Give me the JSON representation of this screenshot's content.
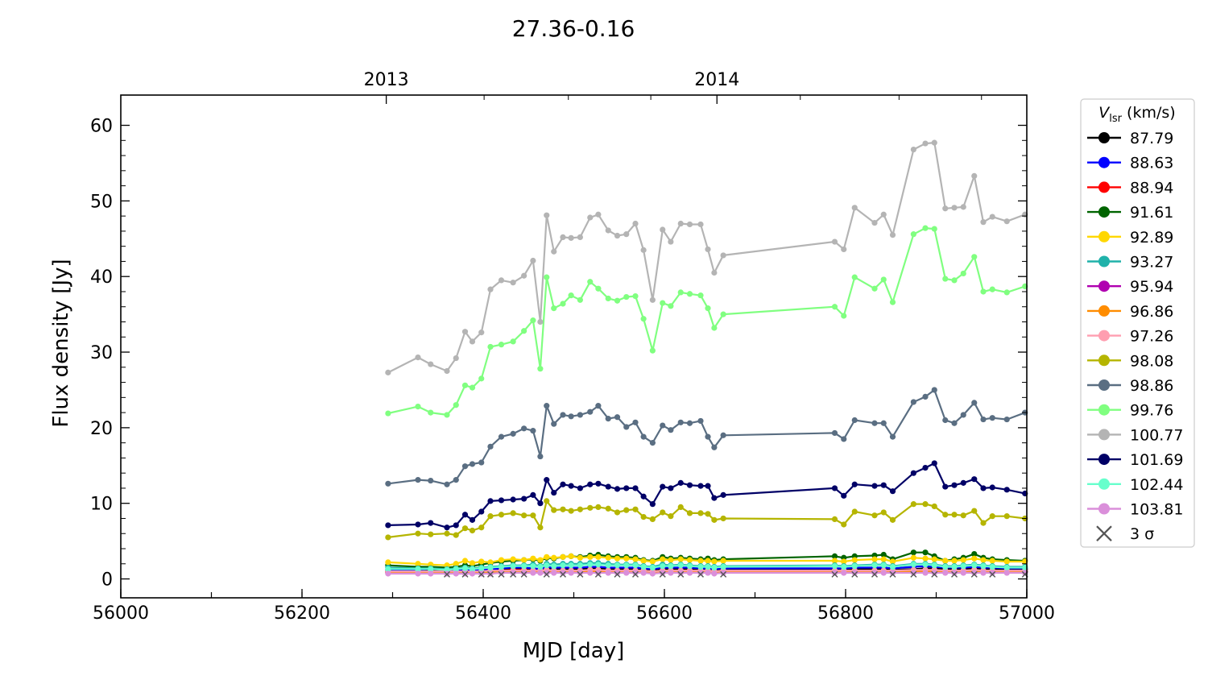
{
  "chart_data": {
    "type": "line",
    "title": "27.36-0.16",
    "xlabel": "MJD [day]",
    "ylabel": "Flux density [Jy]",
    "xlim": [
      56000,
      57000
    ],
    "ylim": [
      -2.5,
      64
    ],
    "x_ticks": [
      56000,
      56200,
      56400,
      56600,
      56800,
      57000
    ],
    "y_ticks": [
      0,
      10,
      20,
      30,
      40,
      50,
      60
    ],
    "top_axis": {
      "ticks": [
        {
          "label": "2013",
          "x": 56293
        },
        {
          "label": "2014",
          "x": 56658
        }
      ]
    },
    "grid": false,
    "legend": {
      "placement": "outside-right",
      "title_main": "V",
      "title_sub": "lsr",
      "title_units": " (km/s)",
      "three_sigma_label": "3 σ"
    },
    "x": [
      56295,
      56328,
      56342,
      56360,
      56370,
      56380,
      56388,
      56398,
      56408,
      56420,
      56433,
      56445,
      56455,
      56463,
      56470,
      56478,
      56488,
      56497,
      56507,
      56518,
      56527,
      56538,
      56548,
      56558,
      56568,
      56577,
      56587,
      56598,
      56607,
      56618,
      56628,
      56640,
      56648,
      56655,
      56665,
      56788,
      56798,
      56810,
      56832,
      56842,
      56852,
      56875,
      56888,
      56898,
      56910,
      56920,
      56930,
      56942,
      56952,
      56962,
      56978,
      56998
    ],
    "series": [
      {
        "name": "87.79",
        "color": "#000000",
        "values": [
          1.0,
          1.0,
          1.1,
          1.0,
          0.9,
          1.0,
          1.0,
          1.0,
          1.1,
          1.2,
          1.3,
          1.3,
          1.2,
          1.1,
          1.4,
          1.3,
          1.3,
          1.3,
          1.3,
          1.4,
          1.4,
          1.3,
          1.3,
          1.3,
          1.3,
          1.2,
          1.1,
          1.3,
          1.3,
          1.3,
          1.3,
          1.2,
          1.2,
          1.1,
          1.2,
          1.2,
          1.2,
          1.3,
          1.3,
          1.3,
          1.2,
          1.3,
          1.4,
          1.4,
          1.3,
          1.3,
          1.3,
          1.4,
          1.3,
          1.3,
          1.2,
          1.2
        ]
      },
      {
        "name": "88.63",
        "color": "#0000ff",
        "values": [
          1.2,
          1.2,
          1.3,
          1.2,
          1.1,
          1.2,
          1.2,
          1.2,
          1.3,
          1.4,
          1.5,
          1.5,
          1.4,
          1.3,
          1.6,
          1.5,
          1.5,
          1.5,
          1.5,
          1.6,
          1.6,
          1.5,
          1.5,
          1.5,
          1.5,
          1.4,
          1.3,
          1.5,
          1.5,
          1.5,
          1.5,
          1.4,
          1.4,
          1.3,
          1.4,
          1.4,
          1.4,
          1.5,
          1.5,
          1.5,
          1.4,
          1.6,
          1.7,
          1.6,
          1.5,
          1.5,
          1.5,
          1.6,
          1.5,
          1.5,
          1.4,
          1.4
        ]
      },
      {
        "name": "88.94",
        "color": "#ff0000",
        "values": [
          0.9,
          0.9,
          1.0,
          0.9,
          0.8,
          0.9,
          0.9,
          0.9,
          1.0,
          1.1,
          1.2,
          1.2,
          1.1,
          1.0,
          1.2,
          1.1,
          1.1,
          1.1,
          1.1,
          1.2,
          1.2,
          1.1,
          1.1,
          1.1,
          1.1,
          1.0,
          1.0,
          1.1,
          1.1,
          1.1,
          1.1,
          1.0,
          1.0,
          1.0,
          1.0,
          1.0,
          1.0,
          1.1,
          1.1,
          1.1,
          1.0,
          1.1,
          1.2,
          1.2,
          1.1,
          1.1,
          1.1,
          1.2,
          1.1,
          1.1,
          1.0,
          1.0
        ]
      },
      {
        "name": "91.61",
        "color": "#006400",
        "values": [
          1.8,
          1.6,
          1.6,
          1.5,
          1.6,
          1.8,
          1.7,
          1.9,
          2.1,
          2.3,
          2.4,
          2.5,
          2.6,
          2.4,
          2.8,
          2.7,
          2.9,
          3.0,
          2.9,
          3.1,
          3.2,
          3.0,
          2.9,
          2.9,
          2.8,
          2.5,
          2.4,
          2.9,
          2.7,
          2.8,
          2.7,
          2.6,
          2.7,
          2.5,
          2.6,
          3.0,
          2.8,
          3.0,
          3.1,
          3.2,
          2.6,
          3.5,
          3.5,
          3.0,
          2.4,
          2.6,
          2.8,
          3.3,
          2.8,
          2.6,
          2.5,
          2.4
        ]
      },
      {
        "name": "92.89",
        "color": "#ffd700",
        "values": [
          2.2,
          2.0,
          1.9,
          1.8,
          2.0,
          2.4,
          2.1,
          2.3,
          2.2,
          2.5,
          2.6,
          2.5,
          2.7,
          2.5,
          2.9,
          2.8,
          2.9,
          3.0,
          2.8,
          2.9,
          2.9,
          2.8,
          2.7,
          2.7,
          2.6,
          2.4,
          2.3,
          2.6,
          2.5,
          2.6,
          2.5,
          2.4,
          2.4,
          2.3,
          2.4,
          2.4,
          2.3,
          2.5,
          2.6,
          2.6,
          2.3,
          2.8,
          2.7,
          2.6,
          2.4,
          2.4,
          2.5,
          2.7,
          2.5,
          2.4,
          2.3,
          2.3
        ]
      },
      {
        "name": "93.27",
        "color": "#20b2aa",
        "values": [
          1.5,
          1.4,
          1.4,
          1.3,
          1.4,
          1.5,
          1.4,
          1.5,
          1.6,
          1.7,
          1.8,
          1.8,
          1.9,
          1.7,
          2.0,
          1.9,
          2.0,
          2.0,
          2.0,
          2.1,
          2.1,
          2.0,
          1.9,
          1.9,
          1.9,
          1.7,
          1.6,
          1.9,
          1.8,
          1.9,
          1.8,
          1.7,
          1.7,
          1.6,
          1.7,
          1.8,
          1.7,
          1.8,
          1.9,
          1.9,
          1.7,
          2.0,
          2.0,
          1.9,
          1.7,
          1.7,
          1.8,
          1.9,
          1.8,
          1.7,
          1.6,
          1.6
        ]
      },
      {
        "name": "95.94",
        "color": "#b000b0",
        "values": [
          0.8,
          0.8,
          0.8,
          0.8,
          0.8,
          0.8,
          0.8,
          0.8,
          0.8,
          0.9,
          0.9,
          0.9,
          0.9,
          0.9,
          0.9,
          0.9,
          0.9,
          0.9,
          0.9,
          0.9,
          0.9,
          0.9,
          0.9,
          0.9,
          0.9,
          0.9,
          0.8,
          0.9,
          0.9,
          0.9,
          0.9,
          0.9,
          0.9,
          0.8,
          0.9,
          0.9,
          0.9,
          0.9,
          0.9,
          0.9,
          0.9,
          0.9,
          0.9,
          0.9,
          0.9,
          0.9,
          0.9,
          0.9,
          0.9,
          0.9,
          0.9,
          0.9
        ]
      },
      {
        "name": "96.86",
        "color": "#ff8c00",
        "values": [
          0.9,
          0.9,
          0.9,
          0.9,
          0.9,
          0.9,
          0.9,
          0.9,
          0.9,
          1.0,
          1.0,
          1.0,
          0.9,
          1.0,
          1.0,
          1.0,
          1.0,
          1.0,
          1.0,
          1.0,
          1.0,
          1.0,
          1.0,
          1.0,
          1.0,
          1.0,
          0.9,
          1.0,
          1.0,
          1.0,
          1.0,
          1.0,
          1.0,
          0.9,
          1.0,
          1.0,
          1.0,
          1.0,
          1.0,
          1.0,
          1.0,
          1.0,
          1.0,
          1.0,
          1.0,
          1.0,
          1.0,
          1.0,
          1.0,
          1.0,
          1.0,
          1.0
        ]
      },
      {
        "name": "97.26",
        "color": "#ff9eb0",
        "values": [
          1.0,
          1.0,
          1.0,
          1.0,
          1.0,
          1.0,
          1.0,
          1.0,
          1.1,
          1.1,
          1.1,
          1.1,
          1.1,
          1.1,
          1.2,
          1.1,
          1.1,
          1.1,
          1.1,
          1.2,
          1.2,
          1.1,
          1.1,
          1.1,
          1.1,
          1.1,
          1.0,
          1.1,
          1.1,
          1.1,
          1.1,
          1.1,
          1.1,
          1.0,
          1.1,
          1.1,
          1.1,
          1.1,
          1.1,
          1.1,
          1.1,
          1.2,
          1.2,
          1.2,
          1.1,
          1.1,
          1.1,
          1.2,
          1.1,
          1.1,
          1.1,
          1.1
        ]
      },
      {
        "name": "98.08",
        "color": "#b5b500",
        "values": [
          5.5,
          6.0,
          5.9,
          6.0,
          5.8,
          6.7,
          6.4,
          6.8,
          8.3,
          8.5,
          8.7,
          8.4,
          8.4,
          6.8,
          10.3,
          9.1,
          9.2,
          9.0,
          9.2,
          9.4,
          9.5,
          9.3,
          8.8,
          9.1,
          9.2,
          8.2,
          7.9,
          8.8,
          8.3,
          9.5,
          8.7,
          8.7,
          8.6,
          7.8,
          8.0,
          7.9,
          7.2,
          8.9,
          8.4,
          8.8,
          7.8,
          9.9,
          9.9,
          9.6,
          8.5,
          8.5,
          8.4,
          9.0,
          7.4,
          8.3,
          8.3,
          8.0
        ]
      },
      {
        "name": "98.86",
        "color": "#5a6e82",
        "values": [
          12.6,
          13.1,
          13.0,
          12.5,
          13.1,
          14.9,
          15.2,
          15.4,
          17.5,
          18.8,
          19.2,
          19.9,
          19.6,
          16.2,
          22.9,
          20.5,
          21.7,
          21.5,
          21.7,
          22.1,
          22.9,
          21.2,
          21.4,
          20.1,
          20.7,
          18.8,
          18.0,
          20.3,
          19.7,
          20.7,
          20.6,
          20.9,
          18.8,
          17.4,
          19.0,
          19.3,
          18.5,
          21.0,
          20.6,
          20.6,
          18.8,
          23.4,
          24.1,
          25.0,
          21.0,
          20.6,
          21.7,
          23.3,
          21.1,
          21.3,
          21.1,
          22.0
        ]
      },
      {
        "name": "99.76",
        "color": "#80ff80",
        "values": [
          21.9,
          22.8,
          22.0,
          21.7,
          23.0,
          25.6,
          25.3,
          26.5,
          30.7,
          31.0,
          31.4,
          32.8,
          34.2,
          27.8,
          39.9,
          35.8,
          36.4,
          37.5,
          36.9,
          39.3,
          38.4,
          37.1,
          36.8,
          37.3,
          37.4,
          34.4,
          30.2,
          36.5,
          36.1,
          37.9,
          37.7,
          37.5,
          35.8,
          33.2,
          35.0,
          36.0,
          34.8,
          39.9,
          38.4,
          39.6,
          36.6,
          45.6,
          46.4,
          46.3,
          39.7,
          39.5,
          40.4,
          42.6,
          38.0,
          38.3,
          37.9,
          38.7
        ]
      },
      {
        "name": "100.77",
        "color": "#b4b4b4",
        "values": [
          27.3,
          29.3,
          28.4,
          27.5,
          29.2,
          32.7,
          31.4,
          32.6,
          38.3,
          39.5,
          39.2,
          40.1,
          42.1,
          34.0,
          48.1,
          43.3,
          45.2,
          45.1,
          45.2,
          47.8,
          48.2,
          46.1,
          45.4,
          45.6,
          47.0,
          43.5,
          36.9,
          46.2,
          44.6,
          47.0,
          46.9,
          46.9,
          43.6,
          40.5,
          42.8,
          44.6,
          43.6,
          49.1,
          47.1,
          48.2,
          45.5,
          56.8,
          57.6,
          57.7,
          49.0,
          49.1,
          49.2,
          53.3,
          47.2,
          47.9,
          47.3,
          48.2
        ]
      },
      {
        "name": "101.69",
        "color": "#000066",
        "values": [
          7.1,
          7.2,
          7.4,
          6.8,
          7.1,
          8.5,
          7.8,
          8.9,
          10.3,
          10.4,
          10.5,
          10.6,
          11.1,
          10.0,
          13.1,
          11.4,
          12.5,
          12.3,
          12.0,
          12.5,
          12.6,
          12.2,
          11.9,
          12.0,
          12.0,
          10.9,
          9.9,
          12.2,
          12.0,
          12.7,
          12.4,
          12.3,
          12.3,
          10.7,
          11.1,
          12.0,
          11.0,
          12.5,
          12.3,
          12.4,
          11.6,
          14.0,
          14.7,
          15.3,
          12.2,
          12.4,
          12.7,
          13.2,
          12.0,
          12.1,
          11.8,
          11.3
        ]
      },
      {
        "name": "102.44",
        "color": "#66ffcc",
        "values": [
          1.3,
          1.3,
          1.3,
          1.2,
          1.3,
          1.4,
          1.3,
          1.4,
          1.5,
          1.6,
          1.7,
          1.7,
          1.7,
          1.6,
          1.8,
          1.7,
          1.8,
          1.8,
          1.8,
          1.9,
          1.9,
          1.8,
          1.8,
          1.8,
          1.8,
          1.6,
          1.5,
          1.7,
          1.7,
          1.8,
          1.7,
          1.6,
          1.6,
          1.5,
          1.6,
          1.7,
          1.6,
          1.7,
          1.8,
          1.8,
          1.6,
          1.9,
          1.9,
          1.8,
          1.6,
          1.6,
          1.7,
          1.8,
          1.7,
          1.6,
          1.5,
          1.5
        ]
      },
      {
        "name": "103.81",
        "color": "#da8fda",
        "values": [
          0.7,
          0.7,
          0.7,
          0.7,
          0.7,
          0.7,
          0.7,
          0.7,
          0.7,
          0.8,
          0.8,
          0.8,
          0.8,
          0.8,
          0.8,
          0.8,
          0.8,
          0.8,
          0.8,
          0.8,
          0.8,
          0.8,
          0.8,
          0.8,
          0.8,
          0.8,
          0.7,
          0.8,
          0.8,
          0.8,
          0.8,
          0.8,
          0.8,
          0.7,
          0.8,
          0.8,
          0.8,
          0.8,
          0.8,
          0.8,
          0.8,
          0.8,
          0.8,
          0.8,
          0.8,
          0.8,
          0.8,
          0.8,
          0.8,
          0.8,
          0.8,
          0.8
        ]
      }
    ],
    "three_sigma": {
      "color": "#555555",
      "x": [
        56360,
        56380,
        56398,
        56408,
        56420,
        56433,
        56445,
        56470,
        56488,
        56507,
        56527,
        56548,
        56568,
        56598,
        56618,
        56640,
        56665,
        56788,
        56810,
        56832,
        56852,
        56875,
        56898,
        56920,
        56942,
        56962,
        56998
      ],
      "values": [
        0.6,
        0.6,
        0.6,
        0.6,
        0.6,
        0.6,
        0.6,
        0.6,
        0.6,
        0.6,
        0.6,
        0.6,
        0.6,
        0.6,
        0.6,
        0.6,
        0.6,
        0.6,
        0.6,
        0.6,
        0.6,
        0.6,
        0.6,
        0.6,
        0.6,
        0.6,
        0.6
      ]
    }
  }
}
